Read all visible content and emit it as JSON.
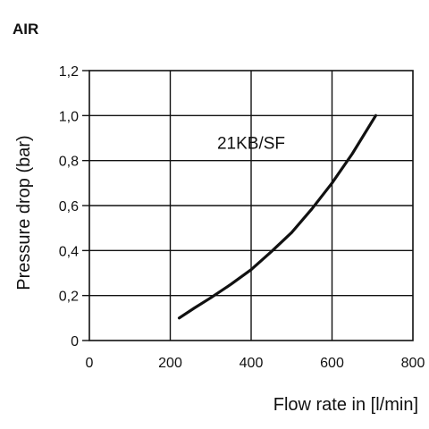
{
  "chart_data": {
    "type": "line",
    "heading": "AIR",
    "xlabel": "Flow rate in [l/min]",
    "ylabel": "Pressure drop (bar)",
    "xlim": [
      0,
      800
    ],
    "ylim": [
      0,
      1.2
    ],
    "x_ticks": [
      {
        "value": 0,
        "label": "0"
      },
      {
        "value": 200,
        "label": "200"
      },
      {
        "value": 400,
        "label": "400"
      },
      {
        "value": 600,
        "label": "600"
      },
      {
        "value": 800,
        "label": "800"
      }
    ],
    "y_ticks": [
      {
        "value": 0,
        "label": "0"
      },
      {
        "value": 0.2,
        "label": "0,2"
      },
      {
        "value": 0.4,
        "label": "0,4"
      },
      {
        "value": 0.6,
        "label": "0,6"
      },
      {
        "value": 0.8,
        "label": "0,8"
      },
      {
        "value": 1.0,
        "label": "1,0"
      },
      {
        "value": 1.2,
        "label": "1,2"
      }
    ],
    "grid": true,
    "series": [
      {
        "name": "21KB/SF",
        "color": "#111111",
        "x": [
          222,
          260,
          300,
          350,
          400,
          450,
          500,
          550,
          600,
          650,
          708
        ],
        "y": [
          0.1,
          0.145,
          0.19,
          0.25,
          0.315,
          0.395,
          0.48,
          0.585,
          0.7,
          0.83,
          1.0
        ],
        "label_at": {
          "x": 400,
          "y": 0.88
        }
      }
    ]
  }
}
